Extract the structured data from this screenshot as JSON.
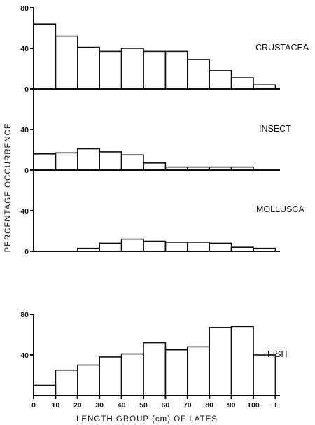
{
  "chart_data": {
    "type": "bar",
    "bin_edges": [
      0,
      10,
      20,
      30,
      40,
      50,
      60,
      70,
      80,
      90,
      100,
      "+"
    ],
    "xlabel": "LENGTH   GROUP   (cm)  OF LATES",
    "ylabel": "PERCENTAGE  OCCURRENCE",
    "line_color": "#111111",
    "panels": [
      {
        "label": "CRUSTACEA",
        "yticks": [
          "0",
          "40",
          "80"
        ],
        "ylim": [
          0,
          80
        ],
        "values": [
          64,
          52,
          41,
          37,
          40,
          37,
          37,
          29,
          18,
          11,
          4
        ]
      },
      {
        "label": "INSECT",
        "yticks": [
          "0",
          "40"
        ],
        "ylim": [
          0,
          80
        ],
        "values": [
          16,
          17,
          21,
          18,
          15,
          7,
          3,
          3,
          3,
          3,
          0
        ]
      },
      {
        "label": "MOLLUSCA",
        "yticks": [
          "0",
          "40"
        ],
        "ylim": [
          0,
          80
        ],
        "values": [
          0,
          0,
          3,
          8,
          12,
          10,
          9,
          9,
          8,
          4,
          3
        ]
      },
      {
        "label": "FISH",
        "yticks": [
          "40",
          "80"
        ],
        "ylim": [
          0,
          80
        ],
        "values": [
          10,
          25,
          30,
          38,
          41,
          52,
          45,
          48,
          67,
          68,
          40
        ]
      }
    ]
  }
}
